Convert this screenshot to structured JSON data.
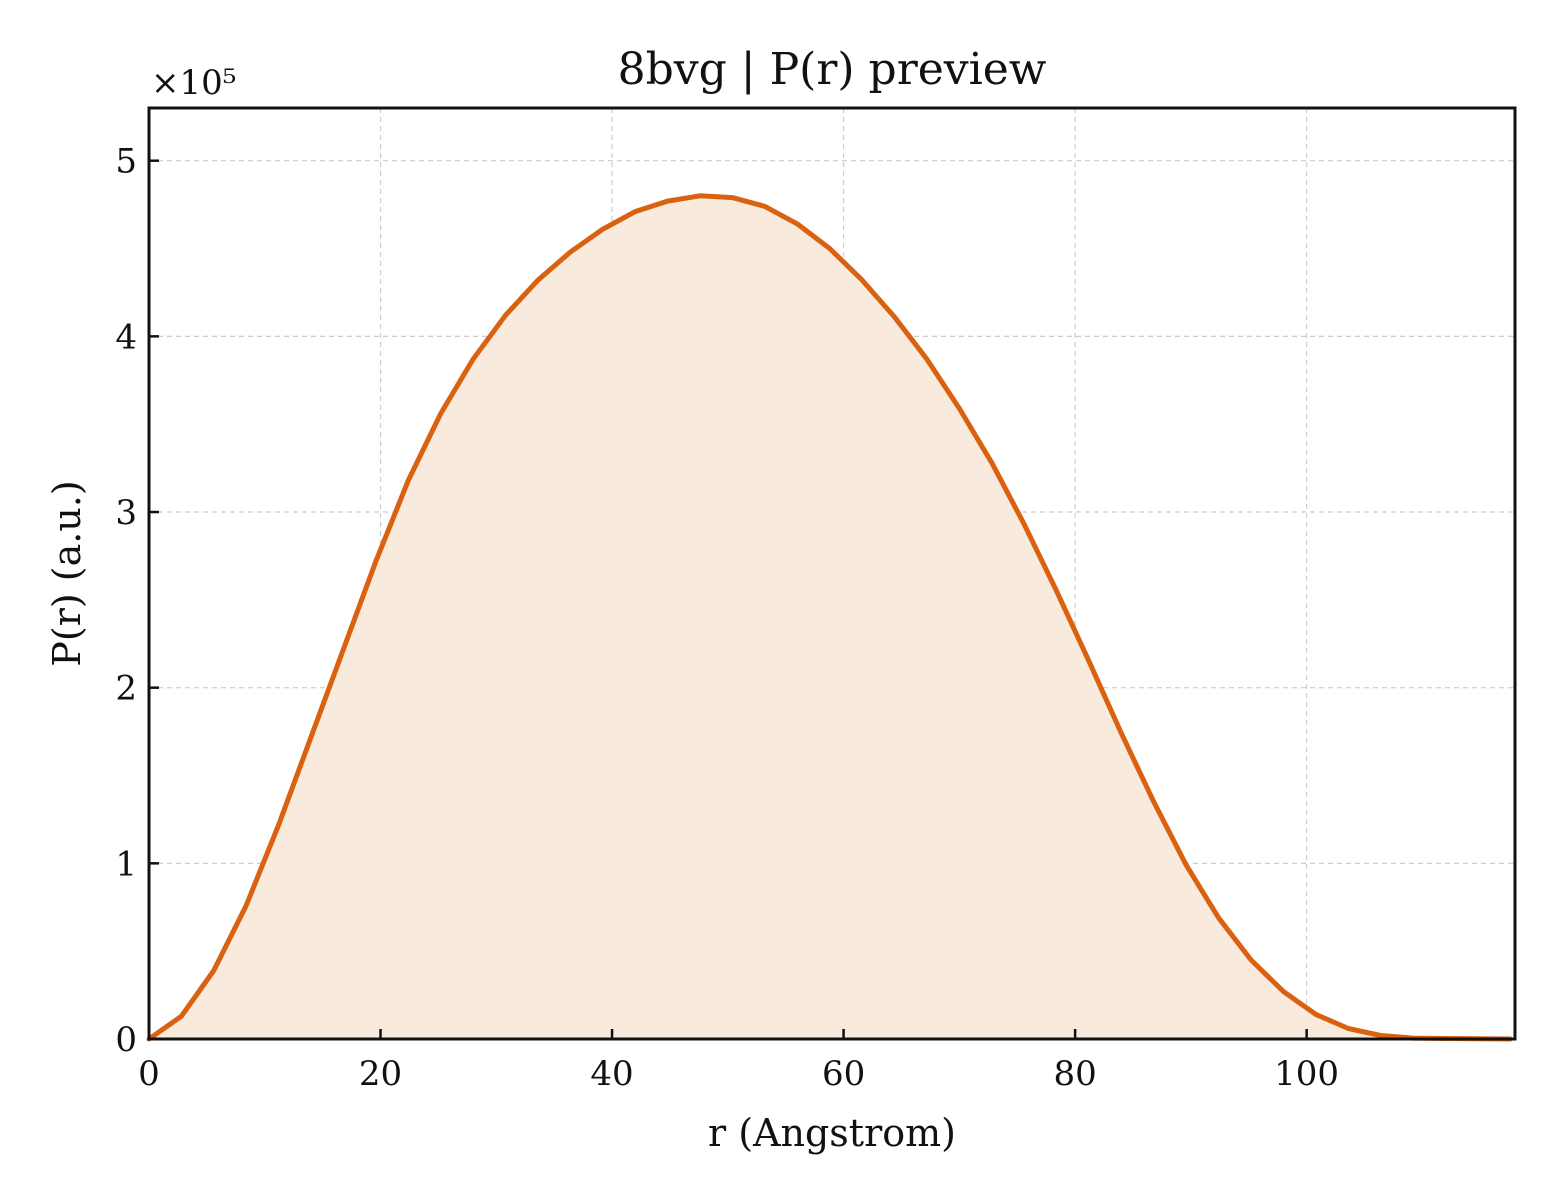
{
  "chart_data": {
    "type": "area",
    "title": "8bvg | P(r) preview",
    "xlabel": "r (Angstrom)",
    "ylabel": "P(r) (a.u.)",
    "y_offset_label": "×10⁵",
    "y_scale_factor": 100000,
    "xlim": [
      0,
      118
    ],
    "ylim": [
      0,
      5.3
    ],
    "x_ticks": [
      0,
      20,
      40,
      60,
      80,
      100
    ],
    "x_tick_labels": [
      "0",
      "20",
      "40",
      "60",
      "80",
      "100"
    ],
    "y_ticks": [
      0,
      1,
      2,
      3,
      4,
      5
    ],
    "y_tick_labels": [
      "0",
      "1",
      "2",
      "3",
      "4",
      "5"
    ],
    "grid": true,
    "tick_direction": "in",
    "line_color": "#d9610f",
    "fill_color": "#f9eade",
    "series": [
      {
        "x": [
          0,
          2.8,
          5.6,
          8.4,
          11.2,
          14.0,
          16.8,
          19.6,
          22.4,
          25.2,
          28.0,
          30.8,
          33.6,
          36.4,
          39.2,
          42.0,
          44.8,
          47.6,
          50.4,
          53.2,
          56.0,
          58.8,
          61.6,
          64.4,
          67.2,
          70.0,
          72.8,
          75.6,
          78.4,
          81.2,
          84.0,
          86.8,
          89.6,
          92.4,
          95.2,
          98.0,
          100.8,
          103.6,
          106.4,
          109.2,
          112.0,
          114.8,
          117.6
        ],
        "y": [
          0.0,
          0.13,
          0.39,
          0.76,
          1.22,
          1.72,
          2.22,
          2.72,
          3.18,
          3.56,
          3.87,
          4.12,
          4.32,
          4.48,
          4.61,
          4.71,
          4.77,
          4.8,
          4.79,
          4.74,
          4.64,
          4.5,
          4.32,
          4.11,
          3.87,
          3.59,
          3.28,
          2.93,
          2.55,
          2.15,
          1.74,
          1.35,
          0.99,
          0.69,
          0.45,
          0.27,
          0.14,
          0.06,
          0.02,
          0.005,
          0.003,
          0.001,
          0.0
        ]
      }
    ]
  }
}
